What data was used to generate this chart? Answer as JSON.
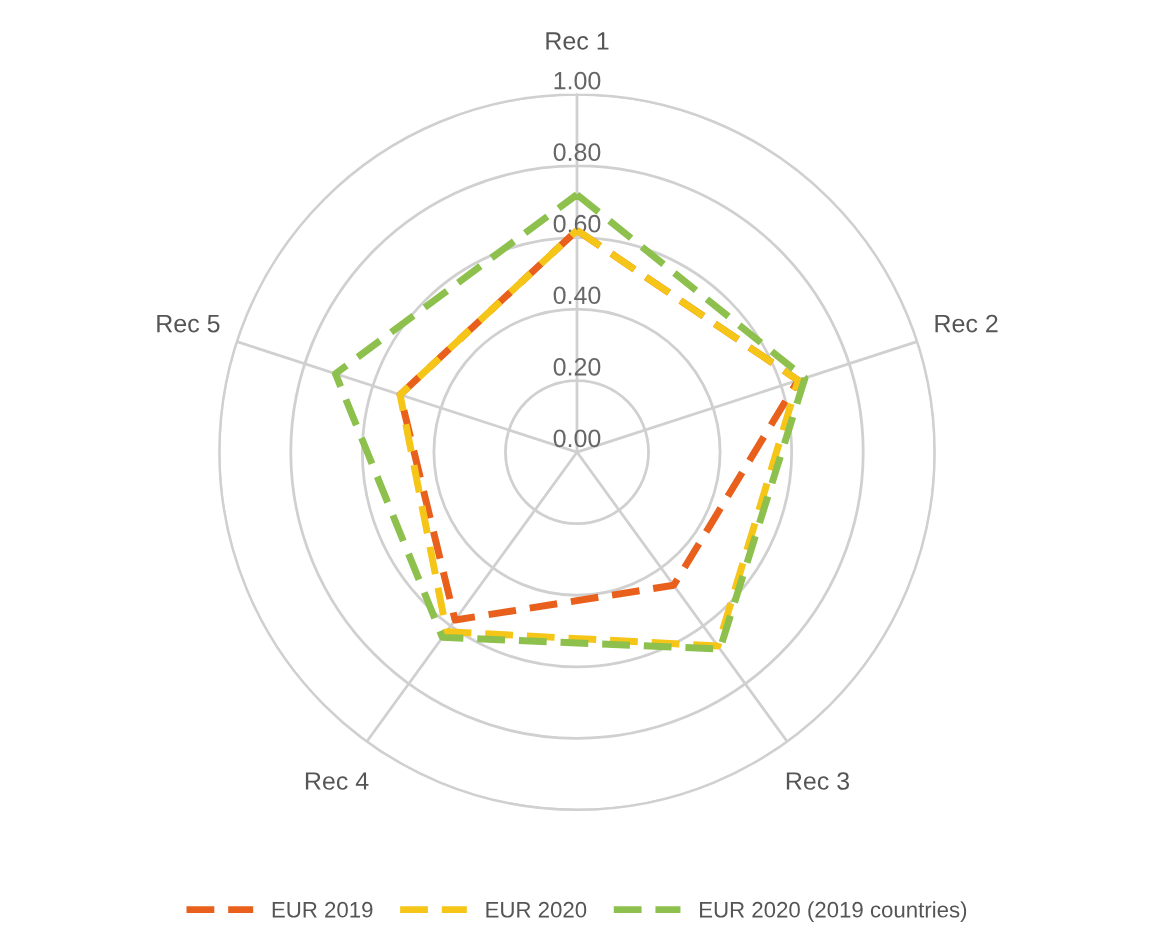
{
  "chart_data": {
    "type": "radar",
    "categories": [
      "Rec 1",
      "Rec 2",
      "Rec 3",
      "Rec 4",
      "Rec 5"
    ],
    "ylim": [
      0,
      1
    ],
    "yticks": [
      {
        "value": 0,
        "label": "0.00"
      },
      {
        "value": 0.2,
        "label": "0.20"
      },
      {
        "value": 0.4,
        "label": "0.40"
      },
      {
        "value": 0.6,
        "label": "0.60"
      },
      {
        "value": 0.8,
        "label": "0.80"
      },
      {
        "value": 1,
        "label": "1.00"
      }
    ],
    "grid": true,
    "legend": "bottom",
    "line_style": "dashed",
    "marker": "none",
    "series": [
      {
        "name": "EUR 2019",
        "color": "#e8601c",
        "values": [
          0.62,
          0.65,
          0.46,
          0.58,
          0.52
        ]
      },
      {
        "name": "EUR 2020",
        "color": "#f5c518",
        "values": [
          0.62,
          0.65,
          0.67,
          0.62,
          0.52
        ]
      },
      {
        "name": "EUR 2020 (2019 countries)",
        "color": "#8dc04c",
        "values": [
          0.72,
          0.67,
          0.68,
          0.64,
          0.71
        ]
      }
    ]
  }
}
